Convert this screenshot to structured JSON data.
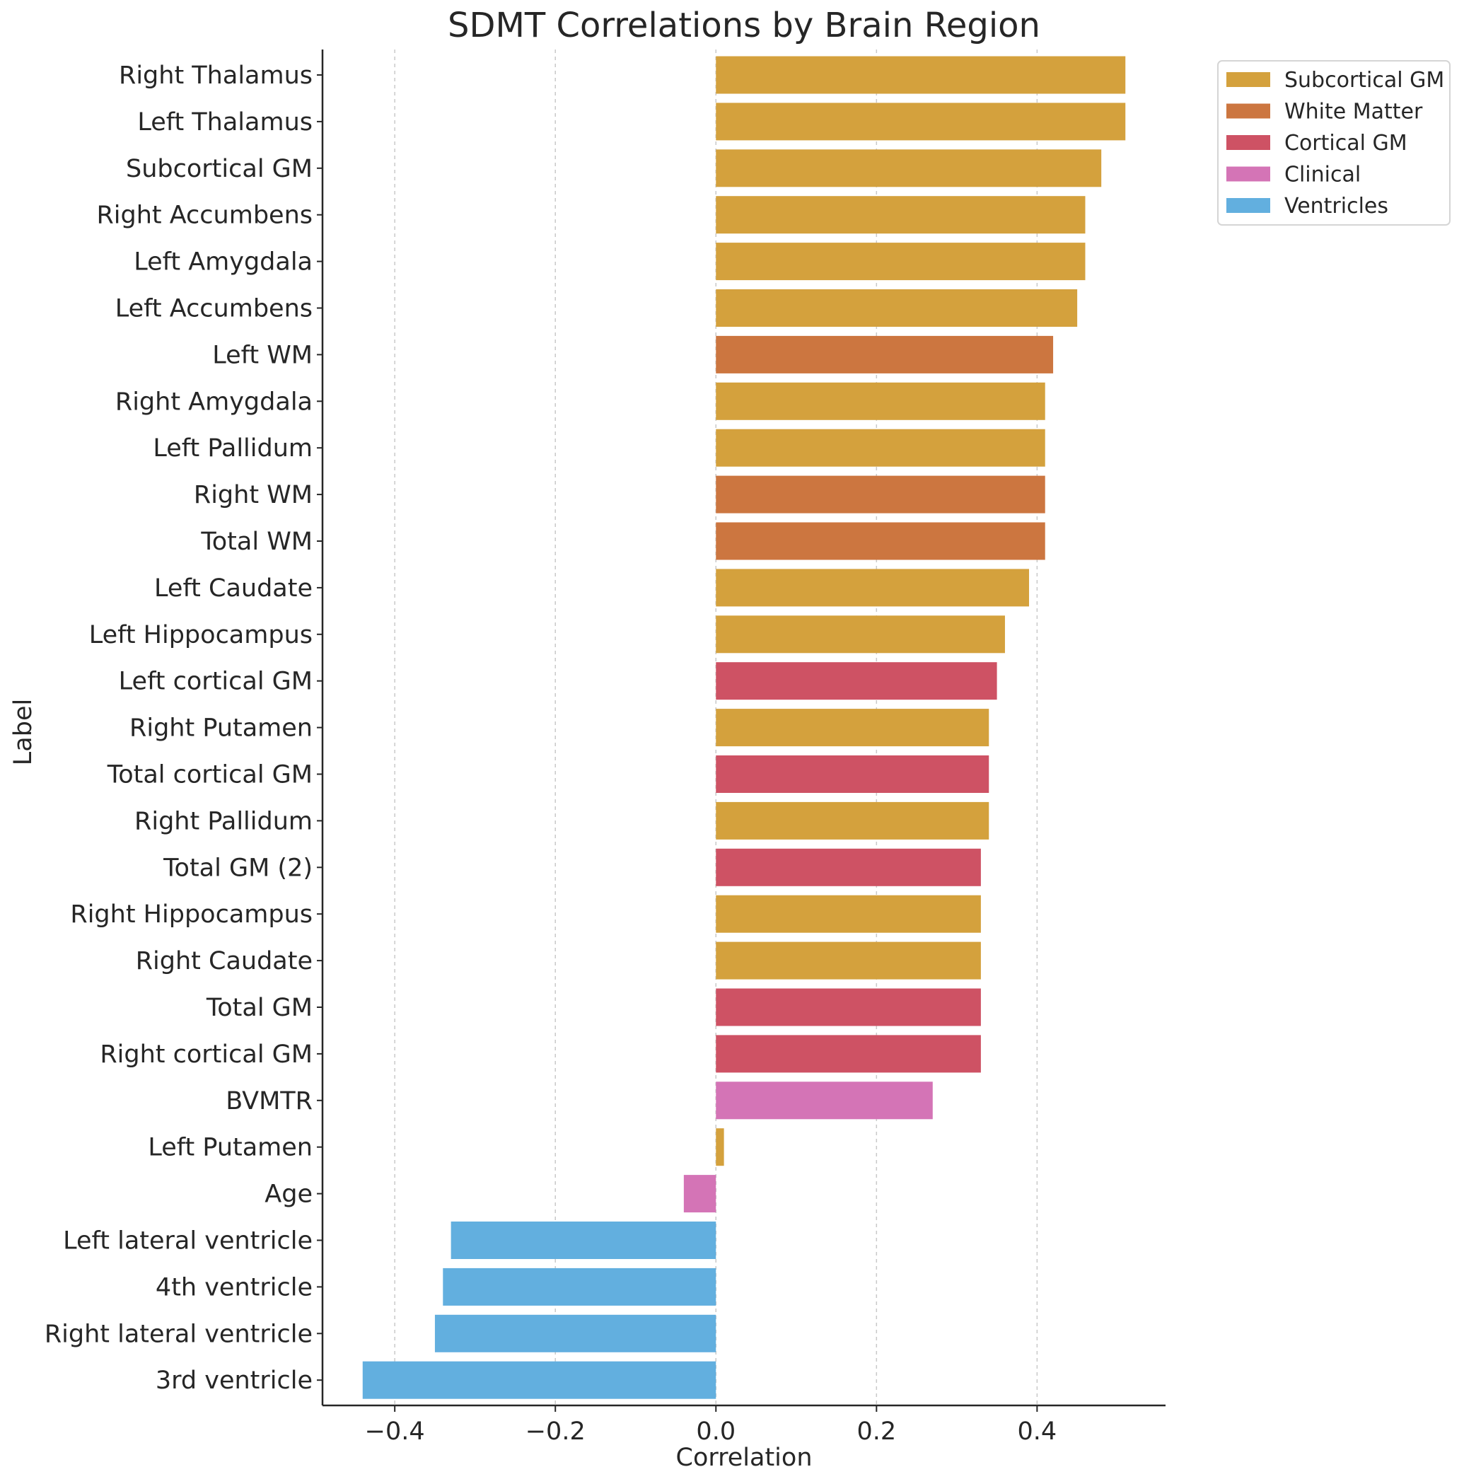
{
  "chart_data": {
    "type": "bar",
    "orientation": "horizontal",
    "title": "SDMT Correlations by Brain Region",
    "xlabel": "Correlation",
    "ylabel": "Label",
    "xlim": [
      -0.49,
      0.56
    ],
    "xticks": [
      -0.4,
      -0.2,
      0.0,
      0.2,
      0.4
    ],
    "xtick_labels": [
      "−0.4",
      "−0.2",
      "0.0",
      "0.2",
      "0.4"
    ],
    "grid": "vertical dashed",
    "legend_position": "top-right outside",
    "groups": [
      {
        "name": "Subcortical GM",
        "color": "#D4A13D"
      },
      {
        "name": "White Matter",
        "color": "#CC7640"
      },
      {
        "name": "Cortical GM",
        "color": "#CE5264"
      },
      {
        "name": "Clinical",
        "color": "#D474B6"
      },
      {
        "name": "Ventricles",
        "color": "#62AFDF"
      }
    ],
    "bars": [
      {
        "label": "Right Thalamus",
        "value": 0.51,
        "group": "Subcortical GM"
      },
      {
        "label": "Left Thalamus",
        "value": 0.51,
        "group": "Subcortical GM"
      },
      {
        "label": "Subcortical GM",
        "value": 0.48,
        "group": "Subcortical GM"
      },
      {
        "label": "Right Accumbens",
        "value": 0.46,
        "group": "Subcortical GM"
      },
      {
        "label": "Left Amygdala",
        "value": 0.46,
        "group": "Subcortical GM"
      },
      {
        "label": "Left Accumbens",
        "value": 0.45,
        "group": "Subcortical GM"
      },
      {
        "label": "Left WM",
        "value": 0.42,
        "group": "White Matter"
      },
      {
        "label": "Right Amygdala",
        "value": 0.41,
        "group": "Subcortical GM"
      },
      {
        "label": "Left Pallidum",
        "value": 0.41,
        "group": "Subcortical GM"
      },
      {
        "label": "Right WM",
        "value": 0.41,
        "group": "White Matter"
      },
      {
        "label": "Total WM",
        "value": 0.41,
        "group": "White Matter"
      },
      {
        "label": "Left Caudate",
        "value": 0.39,
        "group": "Subcortical GM"
      },
      {
        "label": "Left Hippocampus",
        "value": 0.36,
        "group": "Subcortical GM"
      },
      {
        "label": "Left cortical GM",
        "value": 0.35,
        "group": "Cortical GM"
      },
      {
        "label": "Right Putamen",
        "value": 0.34,
        "group": "Subcortical GM"
      },
      {
        "label": "Total cortical GM",
        "value": 0.34,
        "group": "Cortical GM"
      },
      {
        "label": "Right Pallidum",
        "value": 0.34,
        "group": "Subcortical GM"
      },
      {
        "label": "Total GM (2)",
        "value": 0.33,
        "group": "Cortical GM"
      },
      {
        "label": "Right Hippocampus",
        "value": 0.33,
        "group": "Subcortical GM"
      },
      {
        "label": "Right Caudate",
        "value": 0.33,
        "group": "Subcortical GM"
      },
      {
        "label": "Total GM",
        "value": 0.33,
        "group": "Cortical GM"
      },
      {
        "label": "Right cortical GM",
        "value": 0.33,
        "group": "Cortical GM"
      },
      {
        "label": "BVMTR",
        "value": 0.27,
        "group": "Clinical"
      },
      {
        "label": "Left Putamen",
        "value": 0.01,
        "group": "Subcortical GM"
      },
      {
        "label": "Age",
        "value": -0.04,
        "group": "Clinical"
      },
      {
        "label": "Left lateral ventricle",
        "value": -0.33,
        "group": "Ventricles"
      },
      {
        "label": "4th ventricle",
        "value": -0.34,
        "group": "Ventricles"
      },
      {
        "label": "Right lateral ventricle",
        "value": -0.35,
        "group": "Ventricles"
      },
      {
        "label": "3rd ventricle",
        "value": -0.44,
        "group": "Ventricles"
      }
    ]
  }
}
